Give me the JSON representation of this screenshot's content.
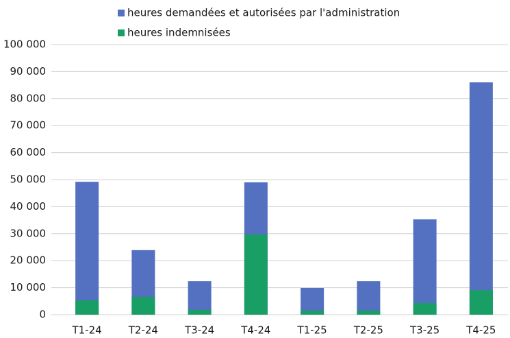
{
  "chart_data": {
    "type": "bar",
    "overlap": true,
    "categories": [
      "T1-24",
      "T2-24",
      "T3-24",
      "T4-24",
      "T1-25",
      "T2-25",
      "T3-25",
      "T4-25"
    ],
    "series": [
      {
        "name": "heures demandées et autorisées par l'administration",
        "color": "#5470c0",
        "values": [
          49200,
          23900,
          12400,
          49000,
          9900,
          12400,
          35300,
          86000
        ]
      },
      {
        "name": "heures indemnisées",
        "color": "#199e66",
        "values": [
          5300,
          6600,
          1800,
          29700,
          1500,
          1500,
          4300,
          9100
        ]
      }
    ],
    "ylim": [
      0,
      100000
    ],
    "yticks": [
      0,
      {
        "value": 10000,
        "label": "10 000"
      },
      {
        "value": 20000,
        "label": "20 000"
      },
      {
        "value": 30000,
        "label": "30 000"
      },
      {
        "value": 40000,
        "label": "40 000"
      },
      {
        "value": 50000,
        "label": "50 000"
      },
      {
        "value": 60000,
        "label": "60 000"
      },
      {
        "value": 70000,
        "label": "70 000"
      },
      {
        "value": 80000,
        "label": "80 000"
      },
      {
        "value": 90000,
        "label": "90 000"
      },
      {
        "value": 100000,
        "label": "100 000"
      }
    ],
    "grid": true
  }
}
